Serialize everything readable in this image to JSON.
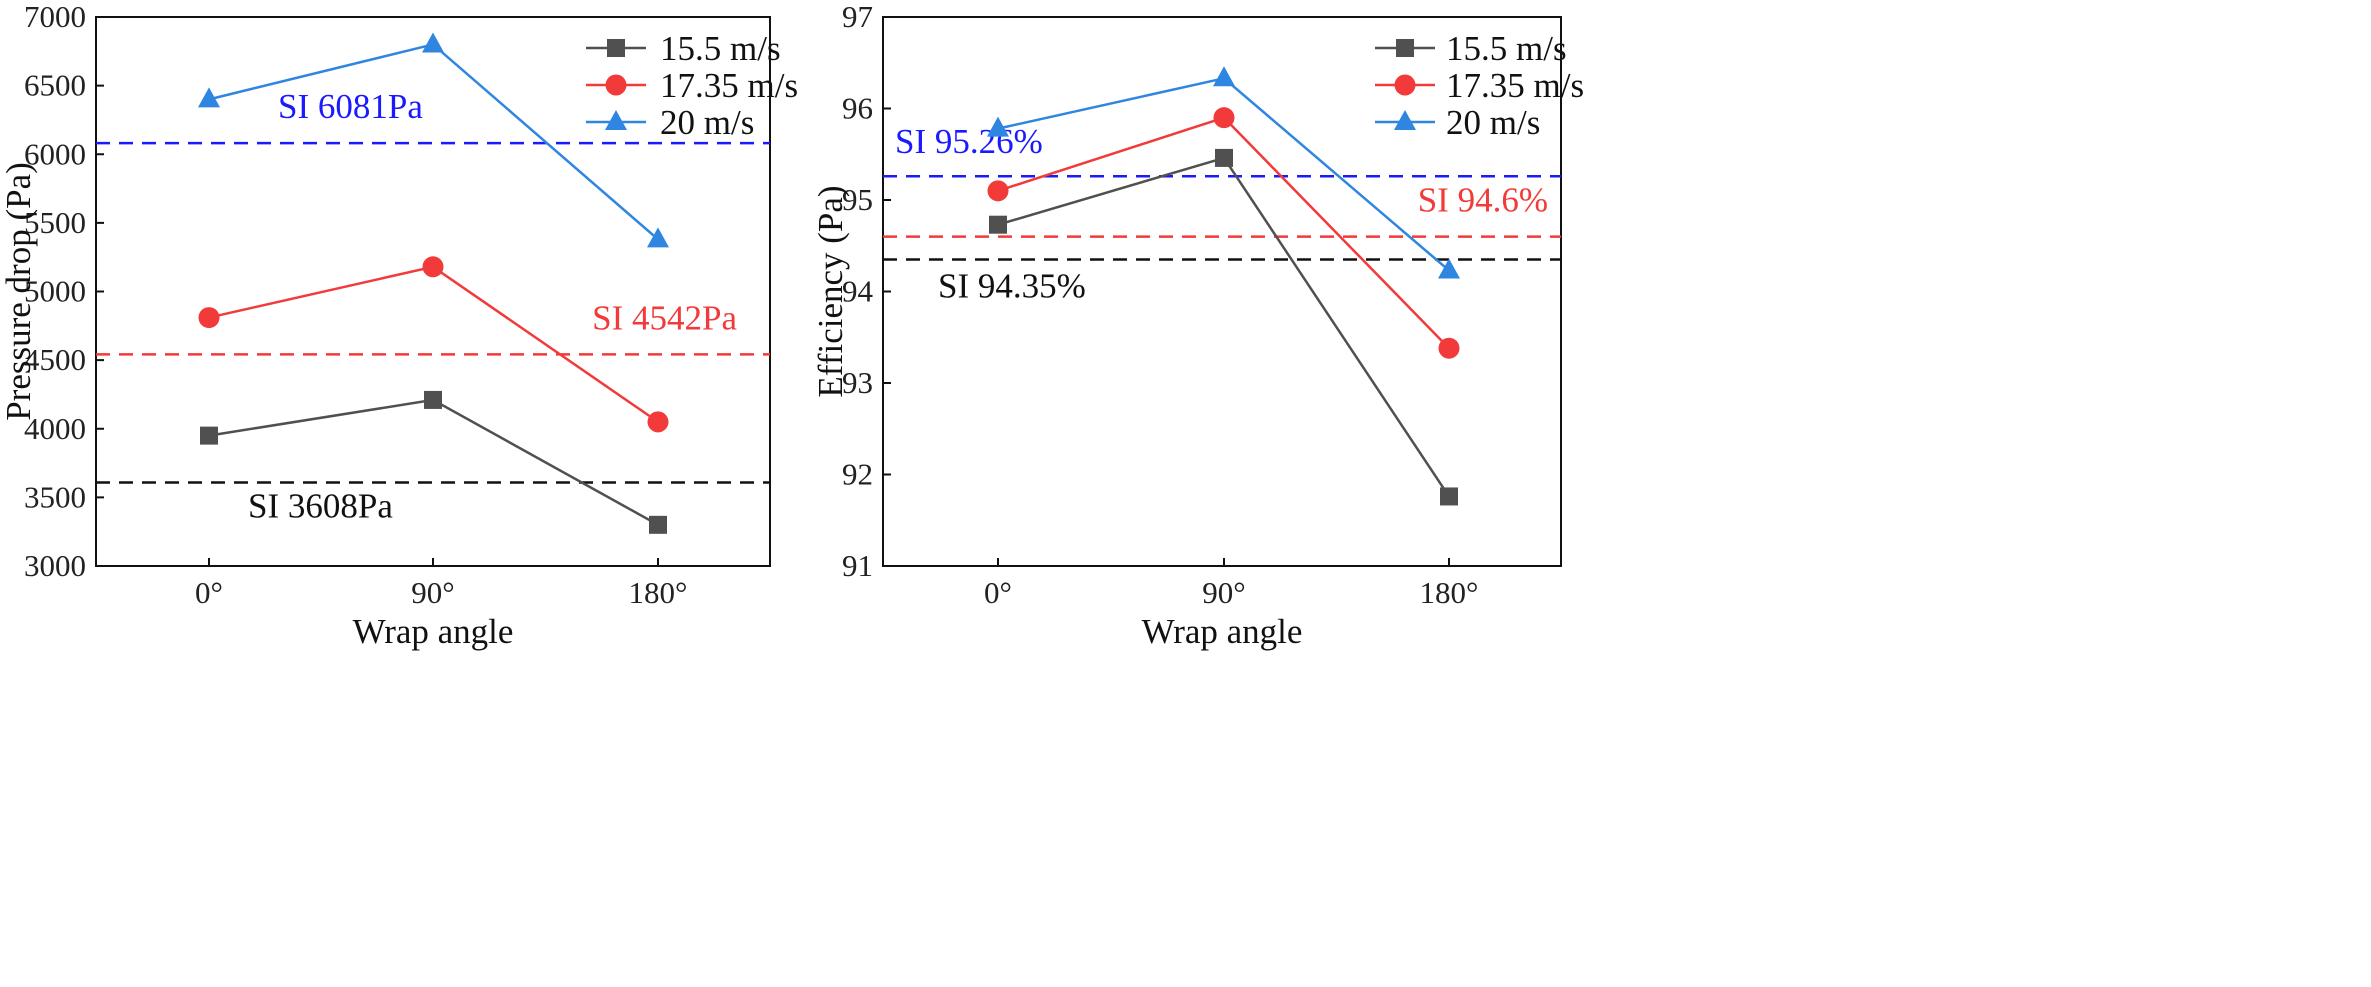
{
  "chart_data": [
    {
      "type": "line",
      "ylabel": "Pressure drop (Pa)",
      "xlabel": "Wrap angle",
      "categories": [
        "0°",
        "90°",
        "180°"
      ],
      "ylim": [
        3000,
        7000
      ],
      "yticks": [
        3000,
        3500,
        4000,
        4500,
        5000,
        5500,
        6000,
        6500,
        7000
      ],
      "grid": false,
      "legend_position": "top-right",
      "series": [
        {
          "name": "15.5 m/s",
          "values": [
            3950,
            4210,
            3300
          ],
          "color": "#505050",
          "marker": "square"
        },
        {
          "name": "17.35 m/s",
          "values": [
            4810,
            5180,
            4050
          ],
          "color": "#f23a3a",
          "marker": "circle"
        },
        {
          "name": "20 m/s",
          "values": [
            6400,
            6800,
            5380
          ],
          "color": "#2f86e0",
          "marker": "triangle"
        }
      ],
      "reference_lines": [
        {
          "label": "SI 6081Pa",
          "value": 6081,
          "color": "#1a1aff",
          "label_position": "upper-left"
        },
        {
          "label": "SI 4542Pa",
          "value": 4542,
          "color": "#f23a3a",
          "label_position": "upper-right"
        },
        {
          "label": "SI 3608Pa",
          "value": 3608,
          "color": "#111111",
          "label_position": "lower-left"
        }
      ]
    },
    {
      "type": "line",
      "ylabel": "Efficiency (Pa)",
      "xlabel": "Wrap angle",
      "categories": [
        "0°",
        "90°",
        "180°"
      ],
      "ylim": [
        91,
        97
      ],
      "yticks": [
        91,
        92,
        93,
        94,
        95,
        96,
        97
      ],
      "grid": false,
      "legend_position": "top-right",
      "series": [
        {
          "name": "15.5 m/s",
          "values": [
            94.73,
            95.46,
            91.76
          ],
          "color": "#505050",
          "marker": "square"
        },
        {
          "name": "17.35 m/s",
          "values": [
            95.1,
            95.9,
            93.38
          ],
          "color": "#f23a3a",
          "marker": "circle"
        },
        {
          "name": "20 m/s",
          "values": [
            95.78,
            96.33,
            94.23
          ],
          "color": "#2f86e0",
          "marker": "triangle"
        }
      ],
      "reference_lines": [
        {
          "label": "SI 95.26%",
          "value": 95.26,
          "color": "#1a1aff",
          "label_position": "upper-left"
        },
        {
          "label": "SI 94.6%",
          "value": 94.6,
          "color": "#f23a3a",
          "label_position": "upper-right"
        },
        {
          "label": "SI 94.35%",
          "value": 94.35,
          "color": "#111111",
          "label_position": "lower-left"
        }
      ]
    }
  ]
}
